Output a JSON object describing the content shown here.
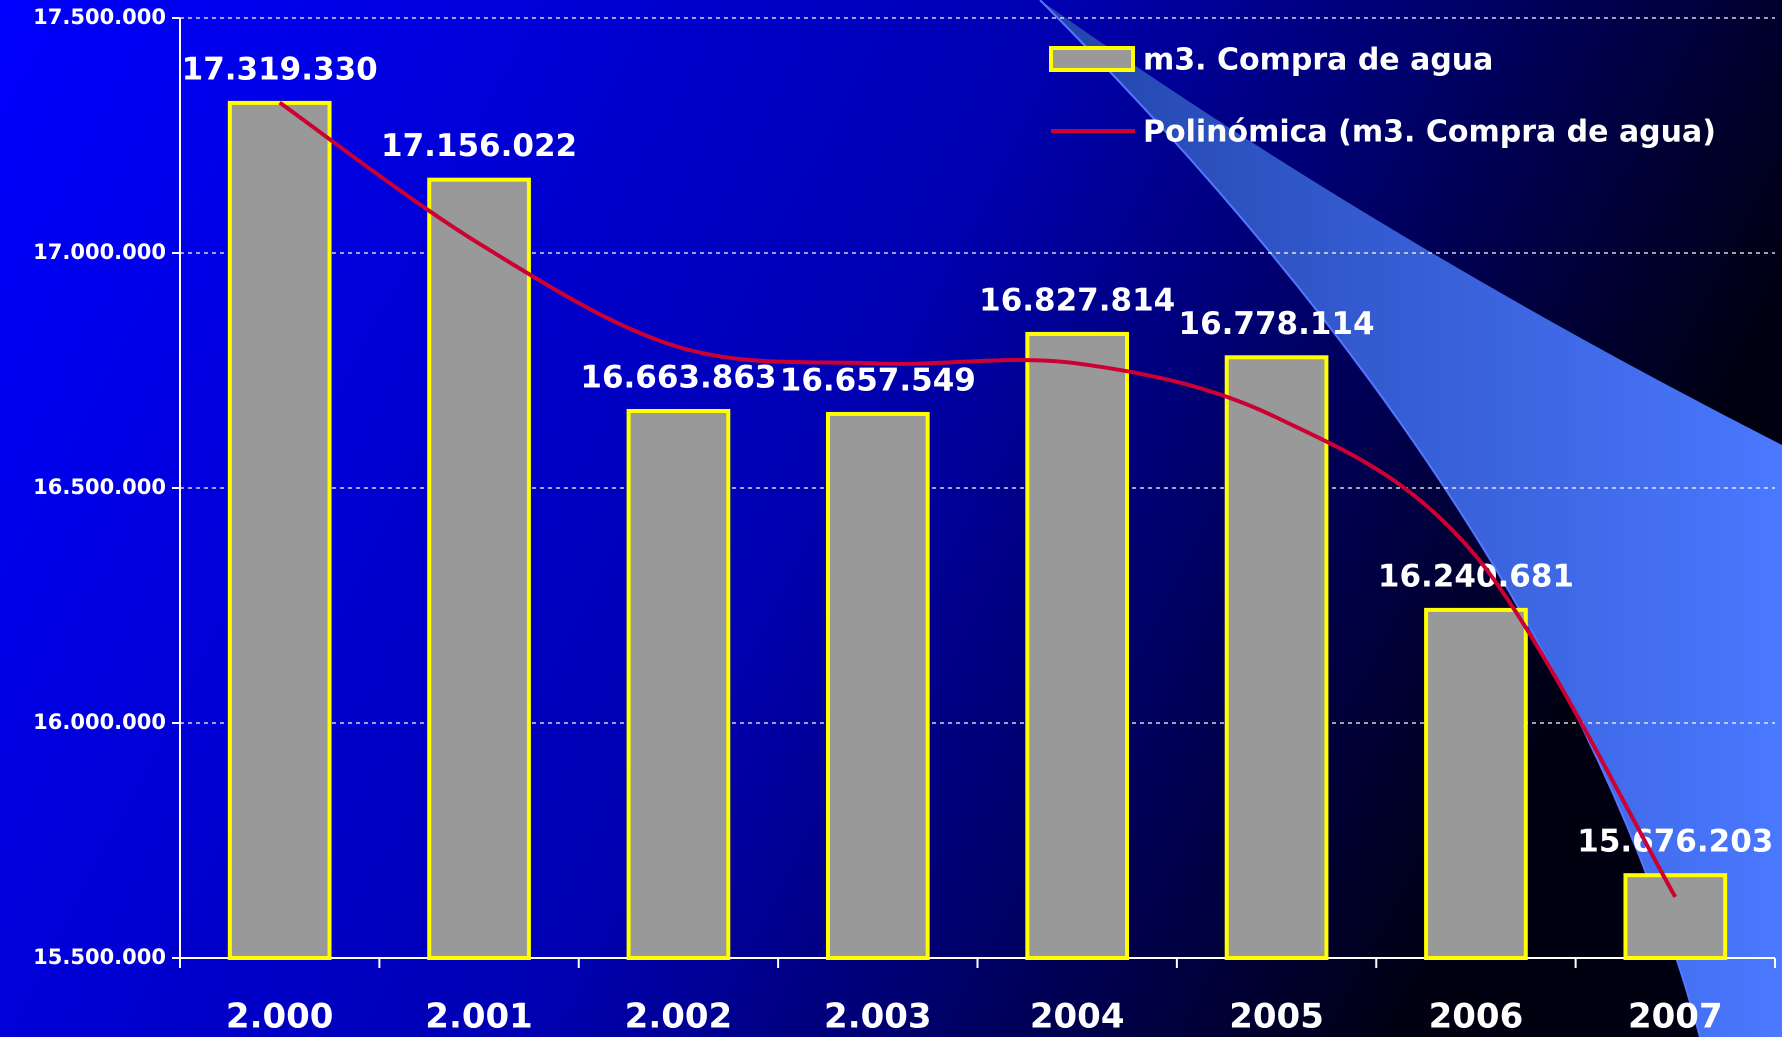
{
  "chart_data": {
    "type": "bar",
    "categories": [
      "2.000",
      "2.001",
      "2.002",
      "2.003",
      "2004",
      "2005",
      "2006",
      "2007"
    ],
    "series": [
      {
        "name": "m3. Compra de agua",
        "type": "bar",
        "color": "#999999",
        "stroke": "#ffff00",
        "values": [
          17319330,
          17156022,
          16663863,
          16657549,
          16827814,
          16778114,
          16240681,
          15676203
        ],
        "value_labels": [
          "17.319.330",
          "17.156.022",
          "16.663.863",
          "16.657.549",
          "16.827.814",
          "16.778.114",
          "16.240.681",
          "15.676.203"
        ]
      },
      {
        "name": "Polinómica (m3. Compra de agua)",
        "type": "line",
        "color": "#cc0033",
        "values": [
          17320000,
          17020000,
          16800000,
          16765000,
          16765000,
          16650000,
          16355000,
          15630000
        ]
      }
    ],
    "ylim": [
      15500000,
      17500000
    ],
    "yticks": [
      {
        "value": 15500000,
        "label": "15.500.000"
      },
      {
        "value": 16000000,
        "label": "16.000.000"
      },
      {
        "value": 16500000,
        "label": "16.500.000"
      },
      {
        "value": 17000000,
        "label": "17.000.000"
      },
      {
        "value": 17500000,
        "label": "17.500.000"
      }
    ],
    "grid": true,
    "legend": "top-right"
  }
}
